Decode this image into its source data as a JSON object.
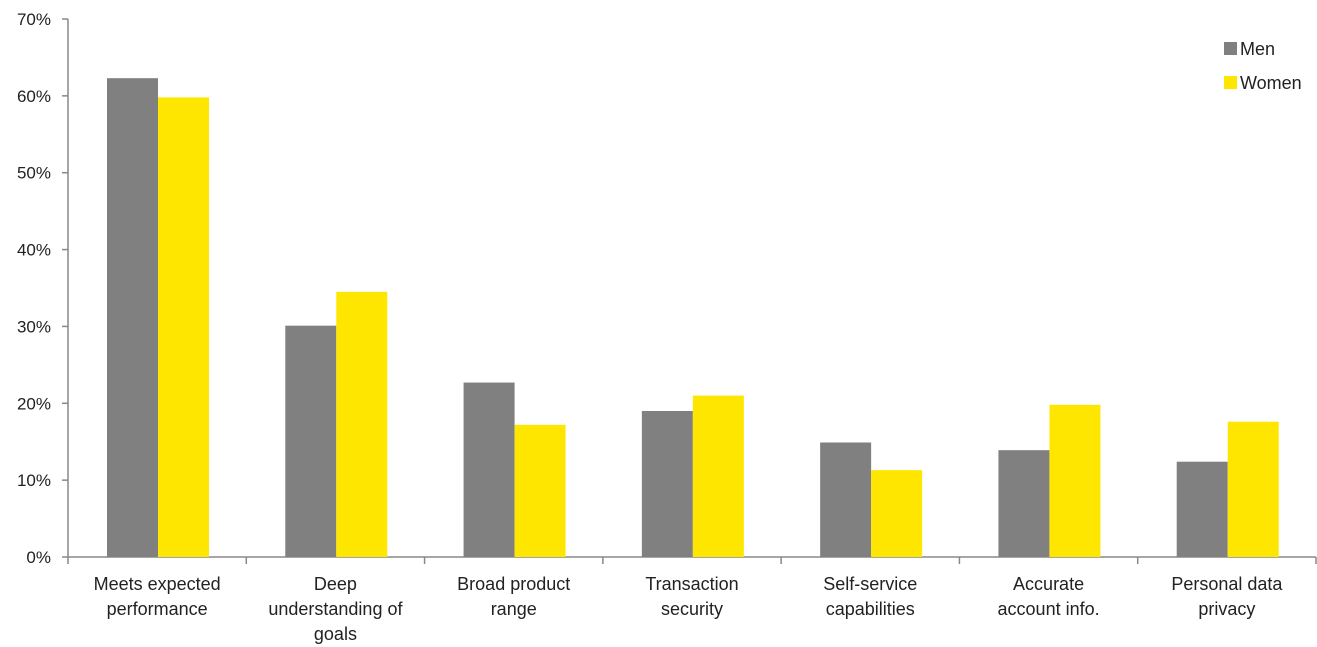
{
  "chart_data": {
    "type": "bar",
    "categories": [
      [
        "Meets expected",
        "performance"
      ],
      [
        "Deep",
        "understanding of",
        "goals"
      ],
      [
        "Broad product",
        "range"
      ],
      [
        "Transaction",
        "security"
      ],
      [
        "Self-service",
        "capabilities"
      ],
      [
        "Accurate",
        "account info."
      ],
      [
        "Personal data",
        "privacy"
      ]
    ],
    "series": [
      {
        "name": "Men",
        "color": "#808080",
        "values": [
          62.3,
          30.1,
          22.7,
          19.0,
          14.9,
          13.9,
          12.4
        ]
      },
      {
        "name": "Women",
        "color": "#FFE600",
        "values": [
          59.8,
          34.5,
          17.2,
          21.0,
          11.3,
          19.8,
          17.6
        ]
      }
    ],
    "ylim": [
      0,
      70
    ],
    "yticks": [
      "0%",
      "10%",
      "20%",
      "30%",
      "40%",
      "50%",
      "60%",
      "70%"
    ],
    "legend": "top-right",
    "grid": false
  }
}
